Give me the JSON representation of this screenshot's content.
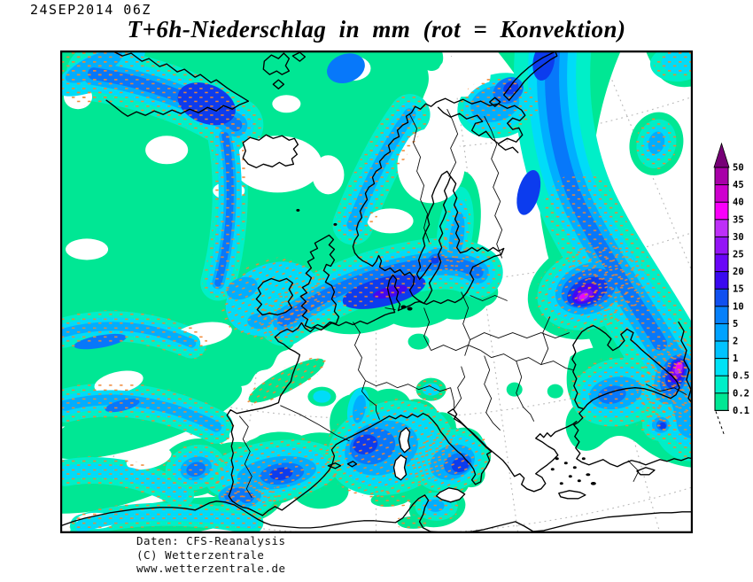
{
  "header": {
    "datetime": "24SEP2014 06Z",
    "title": "T+6h-Niederschlag in mm (rot = Konvektion)"
  },
  "legend": {
    "levels": [
      "50",
      "45",
      "40",
      "35",
      "30",
      "25",
      "20",
      "15",
      "10",
      "5",
      "2",
      "1",
      "0.5",
      "0.2",
      "0.1"
    ],
    "segments": [
      "#A800A8",
      "#CE00CE",
      "#FA00FA",
      "#BE30F8",
      "#9414F6",
      "#6A06F8",
      "#3A0AF0",
      "#1050F0",
      "#0680FA",
      "#00A2FF",
      "#00C3FF",
      "#00E2F6",
      "#00EFC8",
      "#00E794"
    ],
    "arrow_color": "#770077"
  },
  "map": {
    "palette": {
      "L1": "#00E794",
      "L2": "#00EFC8",
      "L3": "#00DCF8",
      "L4": "#00AEFF",
      "L5": "#0778FA",
      "L6": "#0C3CEE",
      "L7": "#4208F2",
      "L8": "#7C0AF8",
      "L9": "#B62EF8",
      "L10": "#F800F8",
      "Lpink": "#FF2BD6"
    },
    "convection_color": "#F08632",
    "graticule_color": "#B9B9B9",
    "coast_color": "#000000",
    "sea_fill": "#FFFFFF"
  },
  "footer": {
    "line1": "Daten: CFS-Reanalysis",
    "line2": "(C) Wetterzentrale",
    "line3": "www.wetterzentrale.de"
  }
}
